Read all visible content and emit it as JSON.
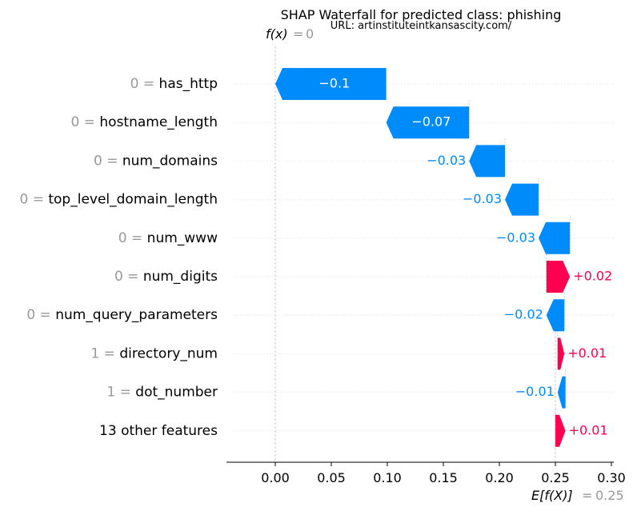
{
  "chart_data": {
    "type": "waterfall",
    "title": "SHAP Waterfall for predicted class: phishing",
    "subtitle": "URL: artinstituteintkansascity.com/",
    "fx_label": "f(x)",
    "fx_equals": "=",
    "fx_value": "0",
    "efx_label": "E[f(X)]",
    "efx_equals": "=",
    "efx_value": "0.25",
    "base_value": 0.25,
    "final_value": 0.0,
    "xlim": [
      -0.044,
      0.306
    ],
    "x_ticks": [
      0.0,
      0.05,
      0.1,
      0.15,
      0.2,
      0.25,
      0.3
    ],
    "x_tick_labels": [
      "0.00",
      "0.05",
      "0.10",
      "0.15",
      "0.20",
      "0.25",
      "0.30"
    ],
    "grid": "dotted horizontal",
    "colors": {
      "positive": "#ff0051",
      "negative": "#008bfb",
      "feature_value": "#999999",
      "text": "#000000"
    },
    "features": [
      {
        "value": "0",
        "name": "has_http",
        "label": "−0.1",
        "start": 0.099,
        "end": 0.0
      },
      {
        "value": "0",
        "name": "hostname_length",
        "label": "−0.07",
        "start": 0.173,
        "end": 0.099
      },
      {
        "value": "0",
        "name": "num_domains",
        "label": "−0.03",
        "start": 0.205,
        "end": 0.173
      },
      {
        "value": "0",
        "name": "top_level_domain_length",
        "label": "−0.03",
        "start": 0.235,
        "end": 0.205
      },
      {
        "value": "0",
        "name": "num_www",
        "label": "−0.03",
        "start": 0.263,
        "end": 0.235
      },
      {
        "value": "0",
        "name": "num_digits",
        "label": "+0.02",
        "start": 0.242,
        "end": 0.263
      },
      {
        "value": "0",
        "name": "num_query_parameters",
        "label": "−0.02",
        "start": 0.258,
        "end": 0.242
      },
      {
        "value": "1",
        "name": "directory_num",
        "label": "+0.01",
        "start": 0.252,
        "end": 0.258
      },
      {
        "value": "1",
        "name": "dot_number",
        "label": "−0.01",
        "start": 0.259,
        "end": 0.252
      },
      {
        "value": "",
        "name": "13 other features",
        "label": "+0.01",
        "start": 0.25,
        "end": 0.259
      }
    ]
  }
}
